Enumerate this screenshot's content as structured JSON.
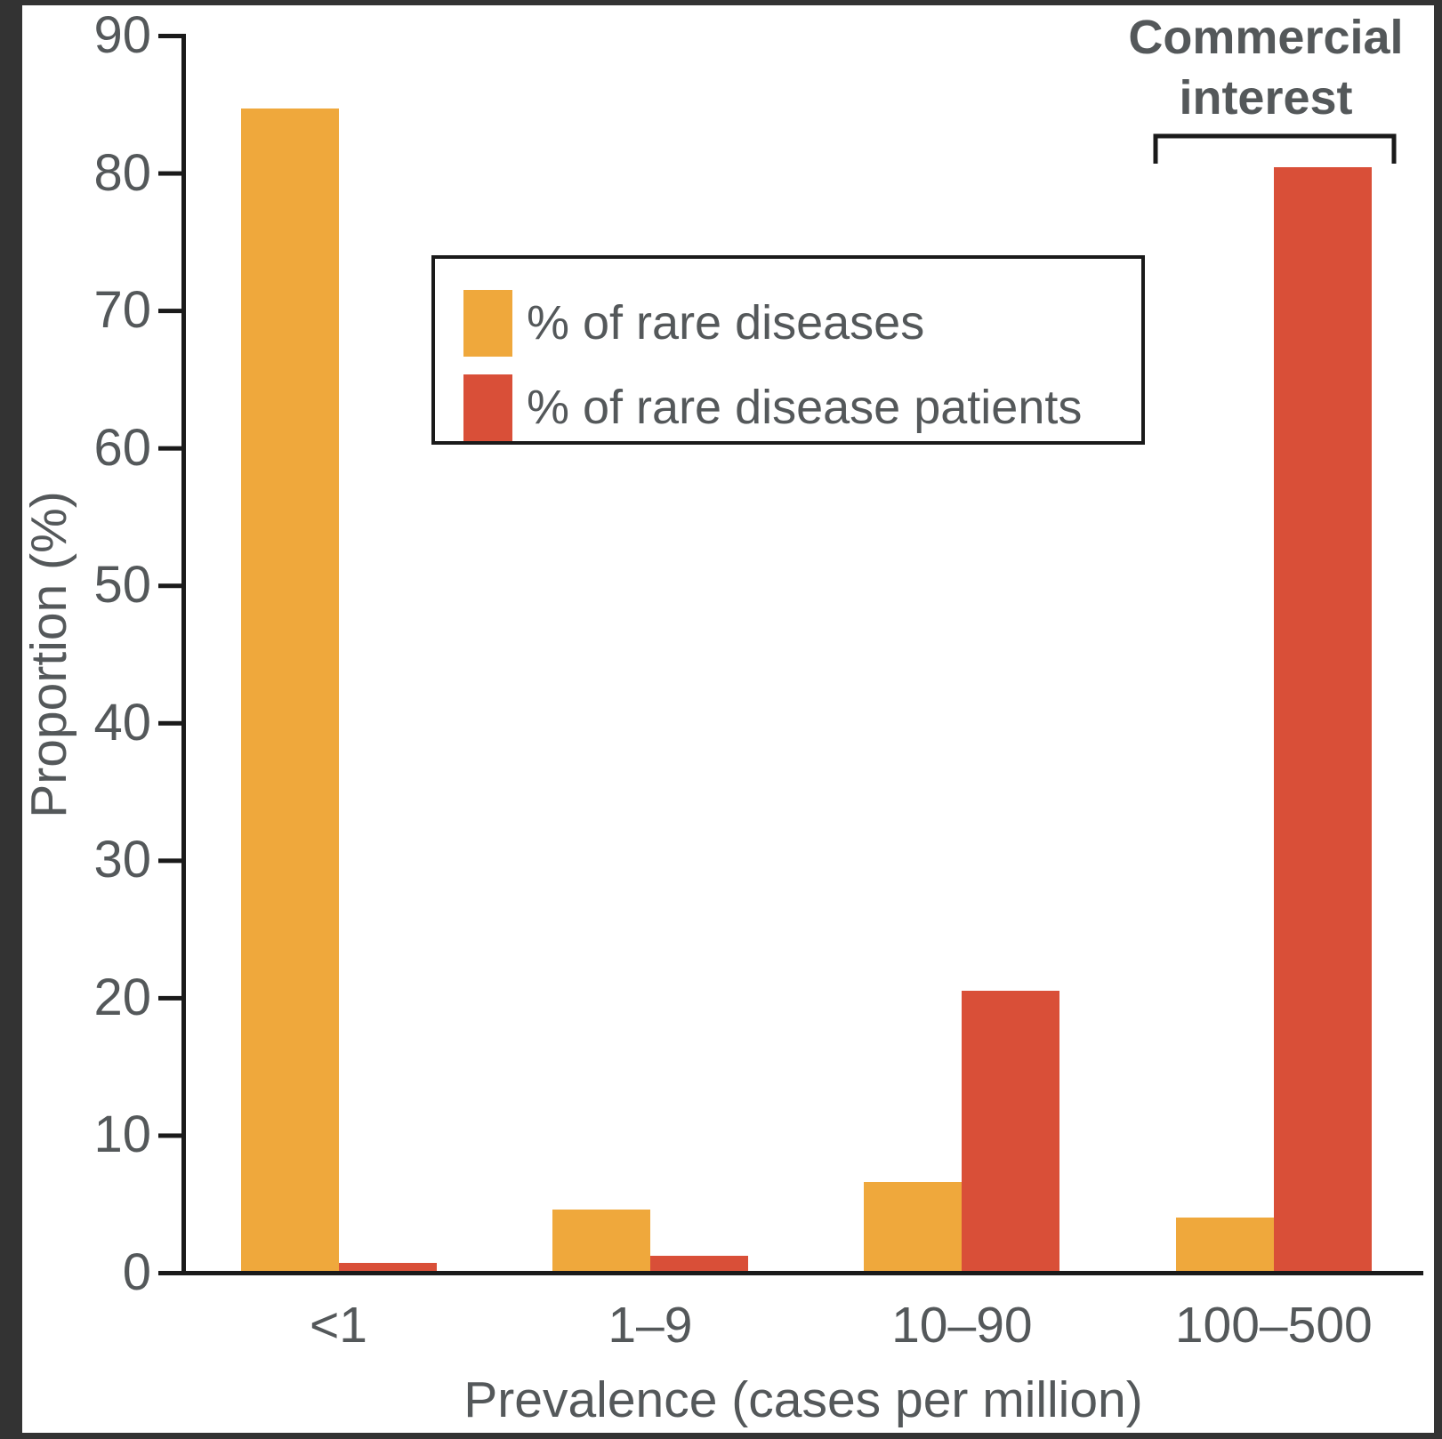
{
  "chart_data": {
    "type": "bar",
    "title": "",
    "categories": [
      "<1",
      "1–9",
      "10–90",
      "100–500"
    ],
    "series": [
      {
        "name": "% of rare diseases",
        "color": "#EFA83C",
        "values": [
          84.7,
          4.6,
          6.6,
          4.0
        ]
      },
      {
        "name": "% of rare disease patients",
        "color": "#D94F38",
        "values": [
          0.7,
          1.2,
          20.5,
          80.4
        ]
      }
    ],
    "xlabel": "Prevalence (cases per million)",
    "ylabel": "Proportion (%)",
    "ylim": [
      0,
      90
    ],
    "yticks": [
      0,
      10,
      20,
      30,
      40,
      50,
      60,
      70,
      80,
      90
    ],
    "grid": false,
    "legend_position": "upper center inside plot",
    "annotation": {
      "label": "Commercial interest",
      "category": "100–500"
    }
  },
  "colors": {
    "series_rare_diseases": "#EFA83C",
    "series_rare_disease_patients": "#D94F38",
    "text": "#54585A",
    "axis": "#1A1A1A",
    "frame": "#333333",
    "background": "#FFFFFF"
  }
}
